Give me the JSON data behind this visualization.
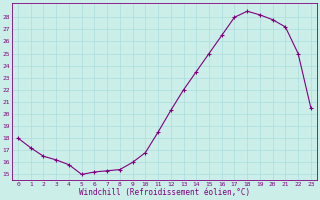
{
  "x": [
    0,
    1,
    2,
    3,
    4,
    5,
    6,
    7,
    8,
    9,
    10,
    11,
    12,
    13,
    14,
    15,
    16,
    17,
    18,
    19,
    20,
    21,
    22,
    23
  ],
  "y": [
    18,
    17.2,
    16.5,
    16.2,
    15.8,
    15.0,
    15.2,
    15.3,
    15.4,
    16.0,
    16.8,
    18.5,
    20.3,
    22.0,
    23.5,
    25.0,
    26.5,
    28.0,
    28.5,
    28.2,
    27.8,
    27.2,
    25.0,
    20.5
  ],
  "line_color": "#800080",
  "marker": "+",
  "marker_color": "#800080",
  "bg_color": "#cceee8",
  "grid_color": "#aadddd",
  "xlabel": "Windchill (Refroidissement éolien,°C)",
  "xlabel_color": "#800080",
  "tick_color": "#800080",
  "ylim": [
    14.5,
    29.2
  ],
  "xlim": [
    -0.5,
    23.5
  ],
  "yticks": [
    15,
    16,
    17,
    18,
    19,
    20,
    21,
    22,
    23,
    24,
    25,
    26,
    27,
    28
  ],
  "xticks": [
    0,
    1,
    2,
    3,
    4,
    5,
    6,
    7,
    8,
    9,
    10,
    11,
    12,
    13,
    14,
    15,
    16,
    17,
    18,
    19,
    20,
    21,
    22,
    23
  ]
}
